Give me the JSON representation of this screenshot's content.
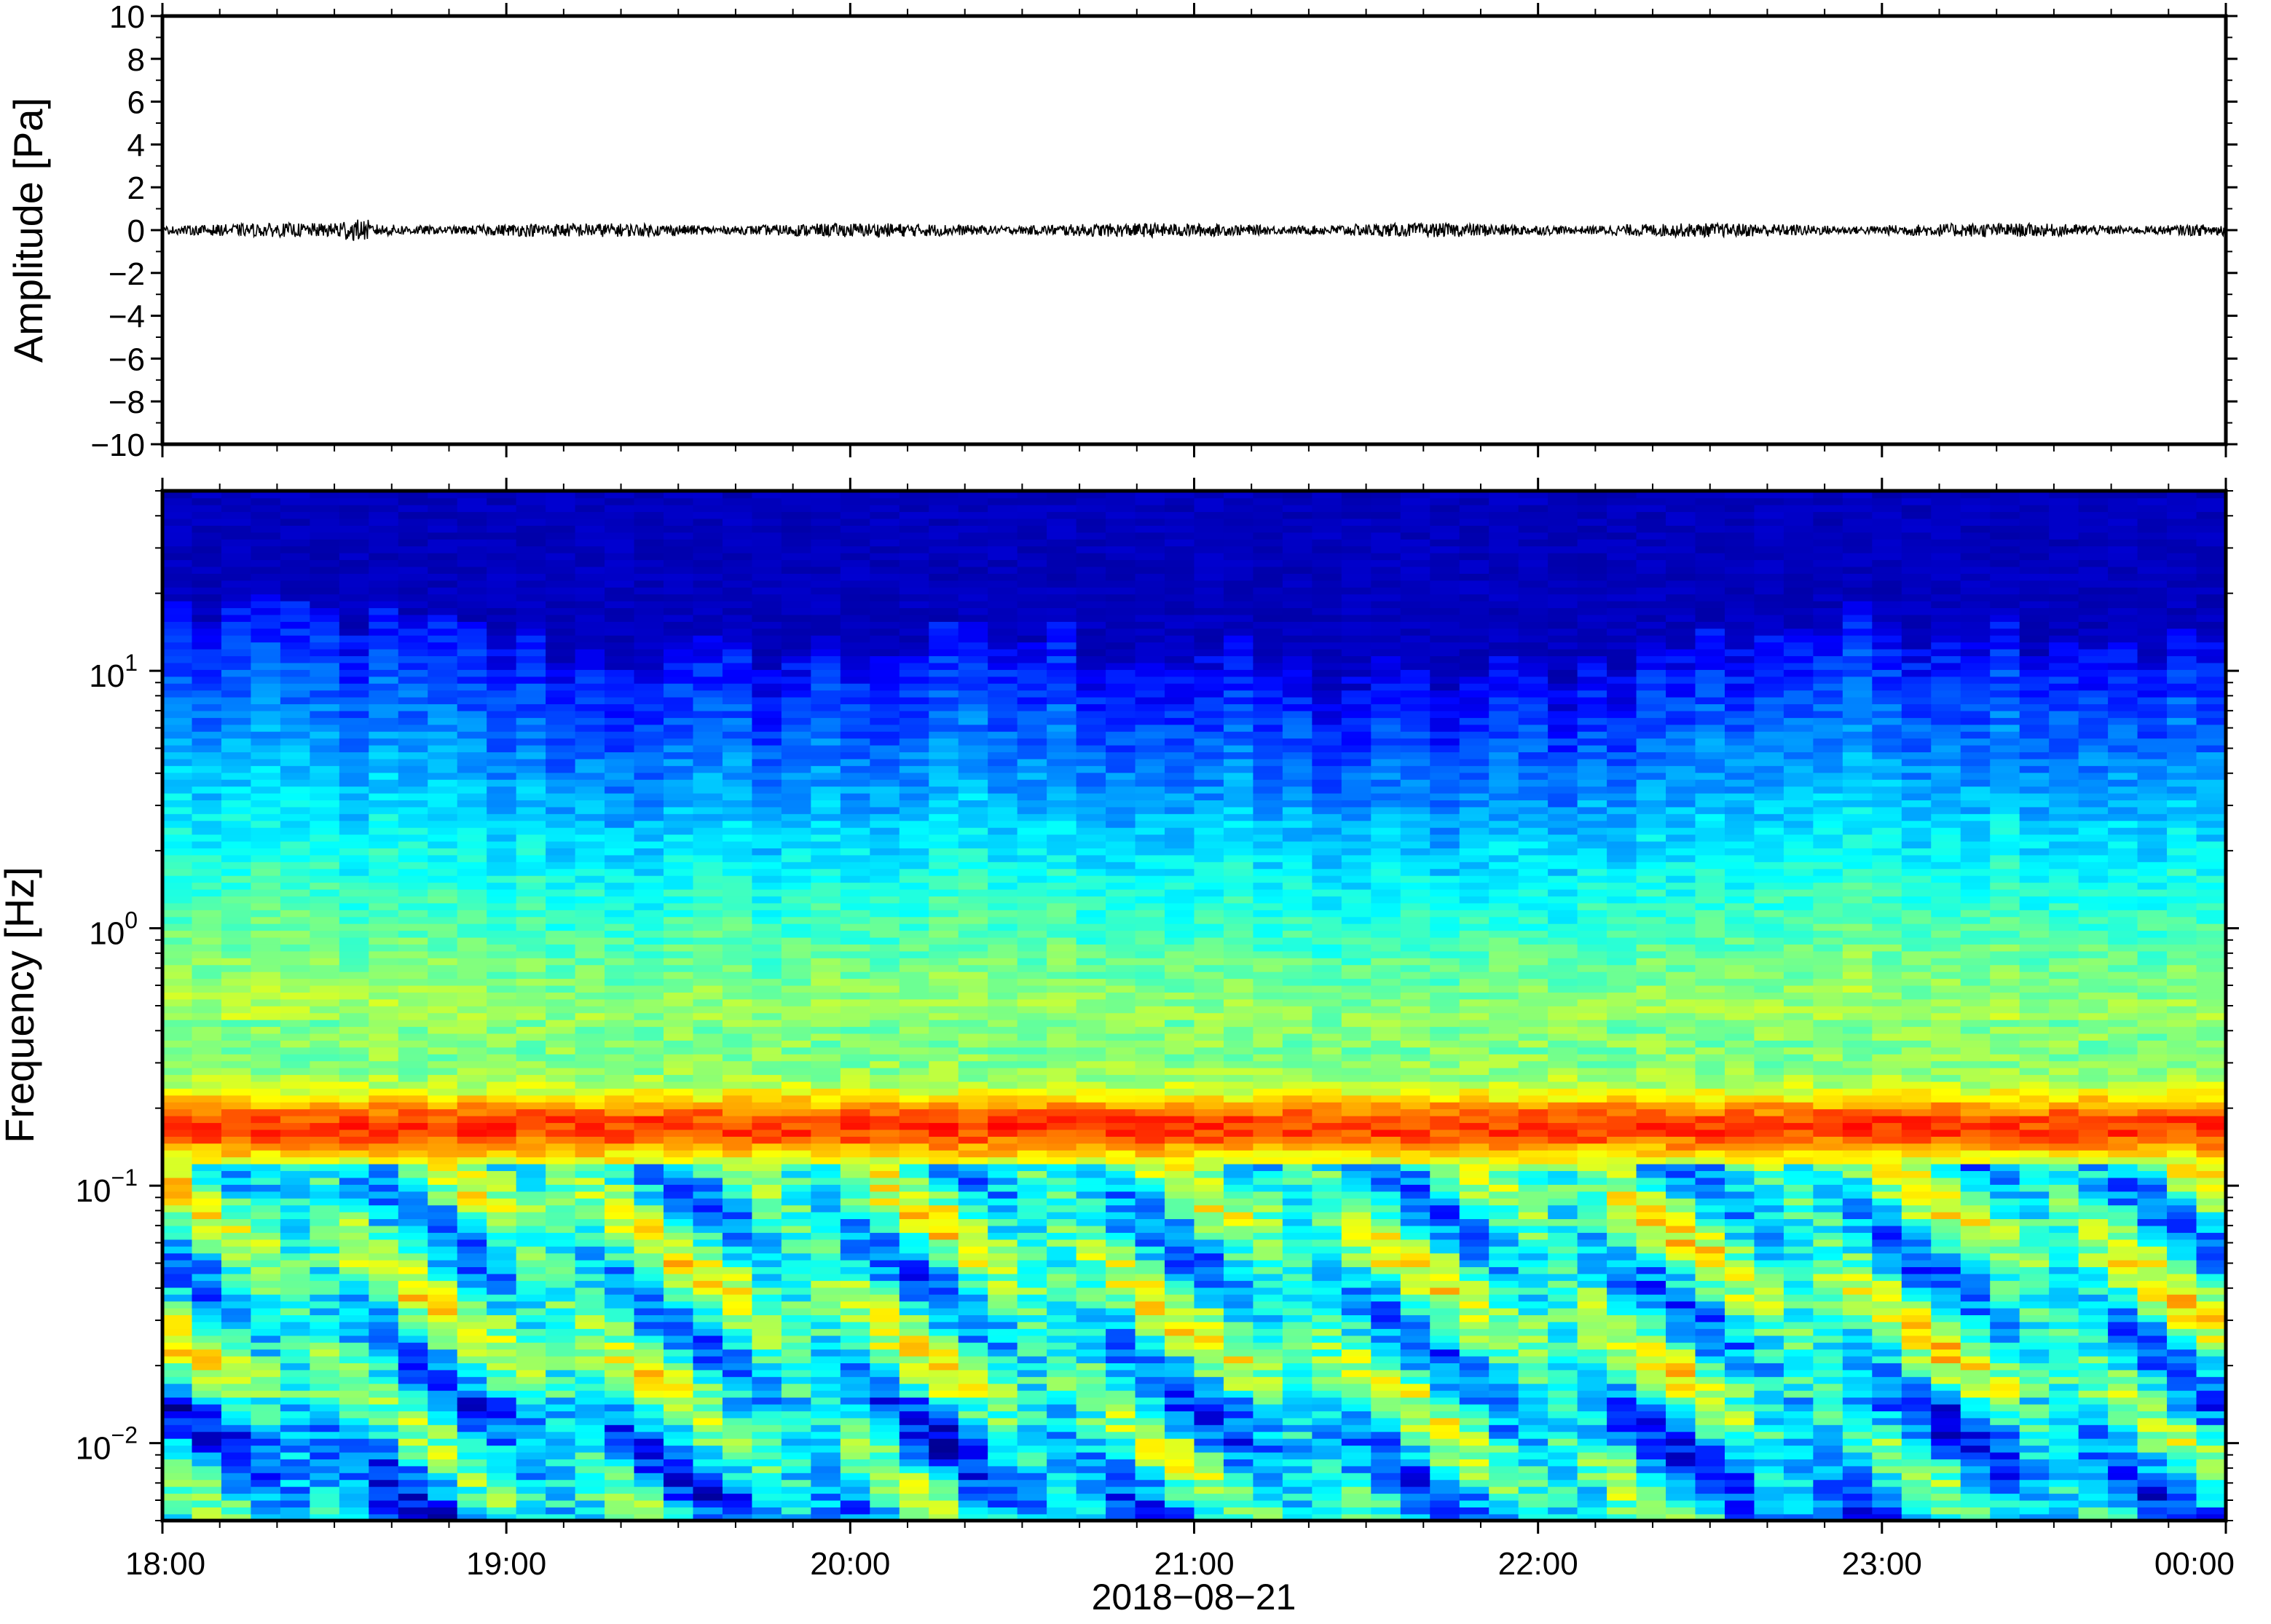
{
  "chart_data": [
    {
      "type": "line",
      "title": "",
      "ylabel": "Amplitude [Pa]",
      "xlabel": "",
      "ylim": [
        -10,
        10
      ],
      "yticks": [
        "10",
        "8",
        "6",
        "4",
        "2",
        "0",
        "−2",
        "−4",
        "−6",
        "−8",
        "−10"
      ],
      "ytick_values": [
        10,
        8,
        6,
        4,
        2,
        0,
        -2,
        -4,
        -6,
        -8,
        -10
      ],
      "xlim": [
        "18:00",
        "00:00"
      ],
      "series": [
        {
          "x_start": "18:00",
          "x_end": "00:00",
          "approx_peak_amplitude": 0.5,
          "color": "#000000"
        }
      ],
      "grid": false
    },
    {
      "type": "heatmap",
      "title": "",
      "ylabel": "Frequency [Hz]",
      "xlabel": "2018−08−21",
      "yscale": "log",
      "ylim": [
        0.005,
        50
      ],
      "yticks": [
        {
          "value": 10,
          "base": "10",
          "exp": "1"
        },
        {
          "value": 1,
          "base": "10",
          "exp": "0"
        },
        {
          "value": 0.1,
          "base": "10",
          "exp": "−1"
        },
        {
          "value": 0.01,
          "base": "10",
          "exp": "−2"
        }
      ],
      "xticks": [
        "18:00",
        "19:00",
        "20:00",
        "21:00",
        "22:00",
        "23:00",
        "00:00"
      ],
      "x_hours": [
        0,
        1,
        2,
        3,
        4,
        5,
        6
      ],
      "colormap": "jet",
      "features": {
        "microseism_peak_hz": 0.17,
        "upper_cutoff_hz_range": [
          8,
          20
        ]
      },
      "grid": false
    }
  ]
}
